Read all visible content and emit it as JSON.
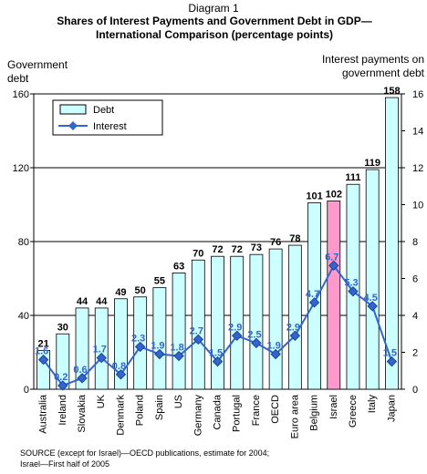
{
  "chart_data": {
    "type": "bar-line",
    "supertitle": "Diagram 1",
    "title": "Shares of Interest Payments and Government Debt in GDP—International Comparison (percentage points)",
    "ylabel": "Government debt",
    "y2label": "Interest payments on government debt",
    "source": [
      "SOURCE (except for Israel)—OECD publications, estimate for 2004;",
      "Israel—First half of 2005"
    ],
    "categories": [
      "Australia",
      "Ireland",
      "Slovakia",
      "UK",
      "Denmark",
      "Poland",
      "Spain",
      "US",
      "Germany",
      "Canada",
      "Portugal",
      "France",
      "OECD",
      "Euro area",
      "Belgium",
      "Israel",
      "Greece",
      "Italy",
      "Japan"
    ],
    "series": [
      {
        "name": "Debt",
        "type": "bar",
        "color": "#ccffff",
        "bar_colors": [
          "#ccffff",
          "#ccffff",
          "#ccffff",
          "#ccffff",
          "#ccffff",
          "#ccffff",
          "#ccffff",
          "#ccffff",
          "#ccffff",
          "#ccffff",
          "#ccffff",
          "#ccffff",
          "#ccffff",
          "#ccffff",
          "#ccffff",
          "#ff99cc",
          "#ccffff",
          "#ccffff",
          "#ccffff"
        ],
        "values": [
          21,
          30,
          44,
          44,
          49,
          50,
          55,
          63,
          70,
          72,
          72,
          73,
          76,
          78,
          101,
          102,
          111,
          119,
          158
        ]
      },
      {
        "name": "Interest",
        "type": "line",
        "axis": "y2",
        "color": "#3366cc",
        "values": [
          1.6,
          0.2,
          0.6,
          1.7,
          0.8,
          2.3,
          1.9,
          1.8,
          2.7,
          1.5,
          2.9,
          2.5,
          1.9,
          2.9,
          4.7,
          6.7,
          5.3,
          4.5,
          1.5
        ]
      }
    ],
    "ylim": [
      0,
      160
    ],
    "yticks": [
      0,
      40,
      80,
      120,
      160
    ],
    "y2lim": [
      0,
      16
    ],
    "y2ticks": [
      0,
      2,
      4,
      6,
      8,
      10,
      12,
      14,
      16
    ],
    "grid": true,
    "legend": "upper left"
  }
}
